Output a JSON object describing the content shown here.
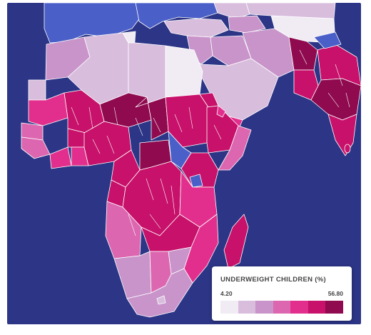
{
  "map": {
    "ocean_color": "#2c3586",
    "no_data_color": "#4a5fc8",
    "border_color": "#ffffff"
  },
  "legend": {
    "title": "UNDERWEIGHT CHILDREN (%)",
    "min_label": "4.20",
    "max_label": "56.80",
    "colors": [
      "#f1ecf4",
      "#d8bddd",
      "#c894ca",
      "#dc67b0",
      "#e22f8d",
      "#c7116a",
      "#8f0a4f"
    ]
  }
}
